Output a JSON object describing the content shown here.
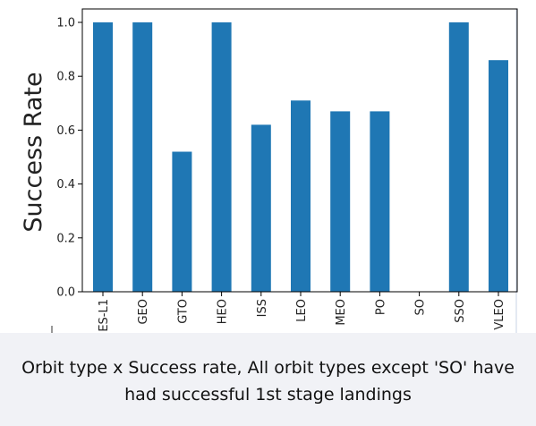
{
  "chart_data": {
    "type": "bar",
    "title": "",
    "xlabel": "",
    "ylabel": "Success Rate",
    "categories": [
      "ES-L1",
      "GEO",
      "GTO",
      "HEO",
      "ISS",
      "LEO",
      "MEO",
      "PO",
      "SO",
      "SSO",
      "VLEO"
    ],
    "values": [
      1.0,
      1.0,
      0.52,
      1.0,
      0.62,
      0.71,
      0.67,
      0.67,
      0.0,
      1.0,
      0.86
    ],
    "ylim": [
      0,
      1.05
    ],
    "yticks": [
      "0.0",
      "0.2",
      "0.4",
      "0.6",
      "0.8",
      "1.0"
    ],
    "grid": false,
    "legend": "none",
    "bar_color": "#1f77b4"
  },
  "caption": {
    "text": "Orbit type x Success rate, All orbit types except 'SO' have had successful 1st stage landings"
  },
  "colors": {
    "caption_bg": "#f1f2f6",
    "axis": "#000000",
    "outer_frame": "#c9d3e6"
  }
}
